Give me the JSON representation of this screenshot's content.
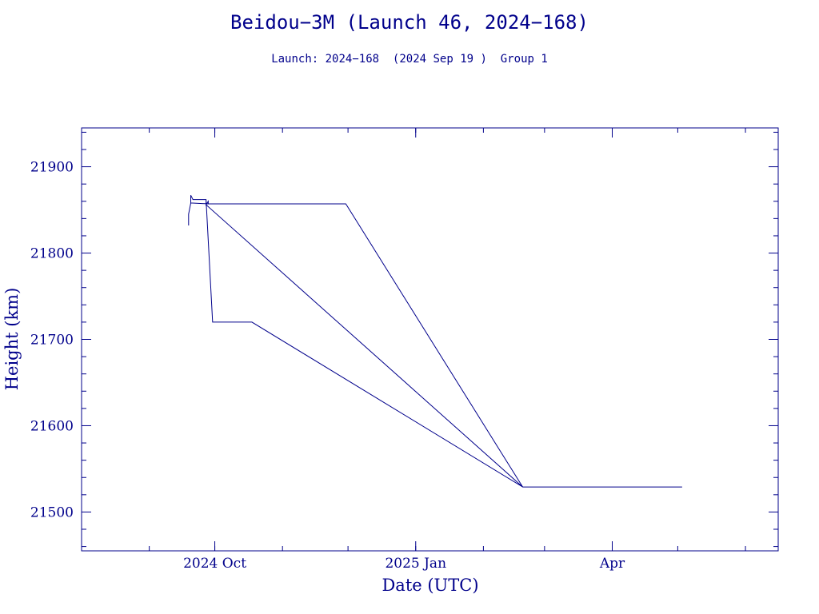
{
  "chart_data": {
    "type": "line",
    "title": "Beidou−3M (Launch 46, 2024−168)",
    "subtitle": "Launch: 2024−168  (2024 Sep 19 )  Group 1",
    "xlabel": "Date (UTC)",
    "ylabel": "Height (km)",
    "xlim": [
      "2024-08-01",
      "2025-06-16"
    ],
    "ylim": [
      21455,
      21945
    ],
    "x_ticks": [
      {
        "date": "2024-10-01",
        "label": "2024 Oct"
      },
      {
        "date": "2025-01-01",
        "label": "2025 Jan"
      },
      {
        "date": "2025-04-01",
        "label": "Apr"
      }
    ],
    "y_ticks": [
      21500,
      21600,
      21700,
      21800,
      21900
    ],
    "grid": false,
    "color": "#00008b",
    "series": [
      {
        "points": [
          [
            "2024-09-19",
            21832
          ],
          [
            "2024-09-19",
            21845
          ],
          [
            "2024-09-20",
            21858
          ],
          [
            "2024-09-20",
            21867
          ],
          [
            "2024-09-21",
            21862
          ],
          [
            "2024-09-27",
            21862
          ],
          [
            "2024-09-27",
            21856
          ],
          [
            "2024-09-28",
            21860
          ],
          [
            "2024-09-28",
            21857
          ],
          [
            "2024-09-20",
            21858
          ],
          [
            "2024-09-28",
            21857
          ],
          [
            "2024-11-30",
            21857
          ],
          [
            "2025-02-19",
            21529
          ],
          [
            "2024-10-18",
            21720
          ],
          [
            "2024-09-30",
            21720
          ],
          [
            "2024-09-27",
            21862
          ],
          [
            "2024-09-27",
            21856
          ],
          [
            "2025-02-19",
            21529
          ],
          [
            "2025-05-03",
            21529
          ]
        ]
      }
    ]
  }
}
